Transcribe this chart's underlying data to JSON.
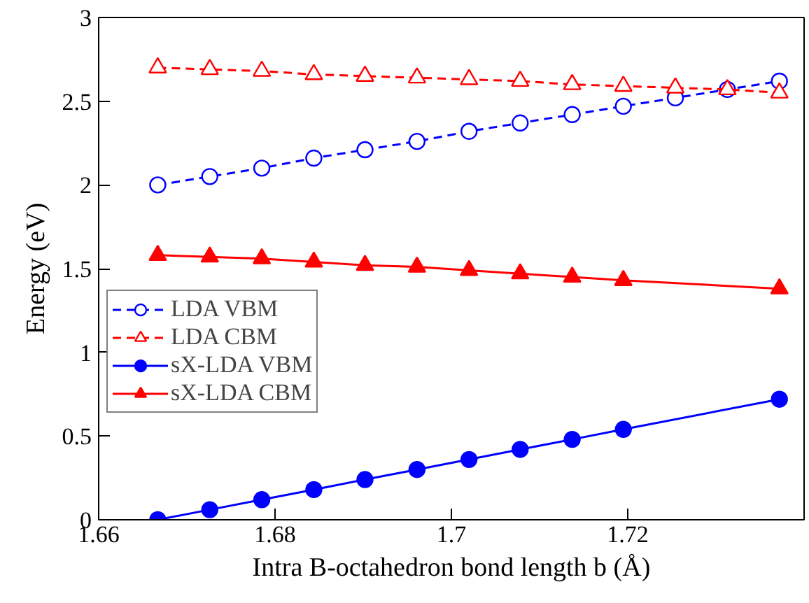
{
  "chart_data": {
    "type": "line",
    "xlabel": "Intra B-octahedron bond length b (Å)",
    "ylabel": "Energy (eV)",
    "x": [
      1.6667,
      1.6726,
      1.6785,
      1.6844,
      1.6902,
      1.6961,
      1.702,
      1.7078,
      1.7137,
      1.7195,
      1.7254,
      1.7313,
      1.7372
    ],
    "xlim": [
      1.66,
      1.74
    ],
    "xticks": [
      1.66,
      1.68,
      1.7,
      1.72
    ],
    "ylim": [
      0,
      3
    ],
    "yticks": [
      0,
      0.5,
      1,
      1.5,
      2,
      2.5,
      3
    ],
    "grid": false,
    "legend": "left",
    "series": [
      {
        "name": "LDA VBM",
        "color": "#0000ff",
        "marker": "circle",
        "line_style": "dashed",
        "values": [
          2.0,
          2.05,
          2.1,
          2.16,
          2.21,
          2.26,
          2.32,
          2.37,
          2.42,
          2.47,
          2.52,
          2.57,
          2.62
        ]
      },
      {
        "name": "LDA CBM",
        "color": "#ff0000",
        "marker": "triangle",
        "line_style": "dashed",
        "values": [
          2.7,
          2.69,
          2.68,
          2.66,
          2.65,
          2.64,
          2.63,
          2.62,
          2.6,
          2.59,
          2.58,
          2.57,
          2.55
        ]
      },
      {
        "name": "sX-LDA VBM",
        "color": "#0000ff",
        "marker": "circle",
        "line_style": "solid",
        "x": [
          1.6667,
          1.6726,
          1.6785,
          1.6844,
          1.6902,
          1.6961,
          1.702,
          1.7078,
          1.7137,
          1.7195,
          1.7372
        ],
        "values": [
          0.0,
          0.06,
          0.12,
          0.18,
          0.24,
          0.3,
          0.36,
          0.42,
          0.48,
          0.54,
          0.72
        ]
      },
      {
        "name": "sX-LDA CBM",
        "color": "#ff0000",
        "marker": "triangle",
        "line_style": "solid",
        "x": [
          1.6667,
          1.6726,
          1.6785,
          1.6844,
          1.6902,
          1.6961,
          1.702,
          1.7078,
          1.7137,
          1.7195,
          1.7372
        ],
        "values": [
          1.58,
          1.57,
          1.56,
          1.54,
          1.52,
          1.51,
          1.49,
          1.47,
          1.45,
          1.43,
          1.38
        ]
      }
    ]
  }
}
